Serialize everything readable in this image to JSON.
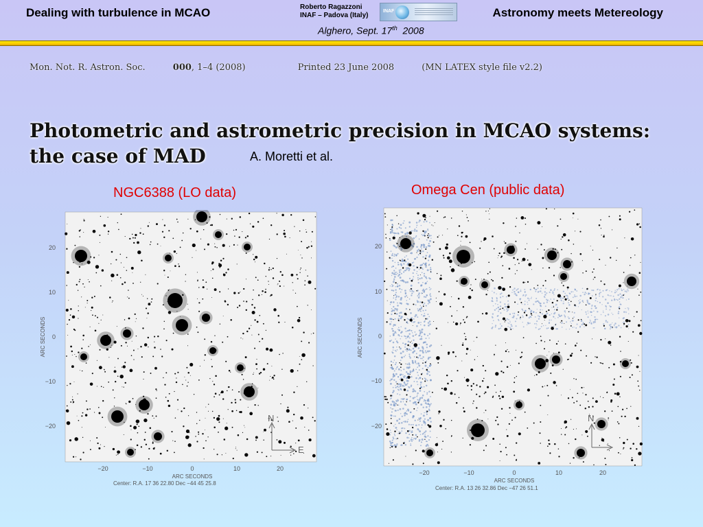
{
  "header": {
    "left_title": "Dealing with turbulence in MCAO",
    "right_title": "Astronomy meets Metereology",
    "author_name": "Roberto Ragazzoni",
    "author_affiliation": "INAF – Padova (Italy)",
    "venue_prefix": "Alghero, Sept. 17",
    "venue_sup": "th",
    "venue_year": "2008",
    "logo_text": "INAF"
  },
  "paper": {
    "journal": "Mon. Not. R. Astron. Soc.",
    "volume": "000",
    "pages": ", 1–4 (2008)",
    "printed": "Printed 23 June 2008",
    "style": "(MN LATEX style file v2.2)",
    "title_line1": "Photometric and astrometric precision in MCAO systems:",
    "title_line2": "the case of MAD",
    "authors": "A. Moretti et al."
  },
  "images": {
    "left": {
      "label": "NGC6388 (LO data)",
      "xlabel": "ARC SECONDS",
      "ylabel": "ARC SECONDS",
      "xticks": [
        "−20",
        "−10",
        "0",
        "10",
        "20"
      ],
      "yticks": [
        "20",
        "10",
        "0",
        "−10",
        "−20"
      ],
      "center": "Center:   R.A.  17  36  22.80      Dec    −44  45  25.8",
      "compass_n": "N",
      "compass_e": "E"
    },
    "right": {
      "label": "Omega Cen (public data)",
      "xlabel": "ARC SECONDS",
      "ylabel": "ARC SECONDS",
      "xticks": [
        "−20",
        "−10",
        "0",
        "10",
        "20"
      ],
      "yticks": [
        "20",
        "10",
        "0",
        "−10",
        "−20"
      ],
      "center": "Center:   R.A.  13  26  32.86      Dec    −47  26  51.1",
      "compass_n": "N"
    }
  }
}
